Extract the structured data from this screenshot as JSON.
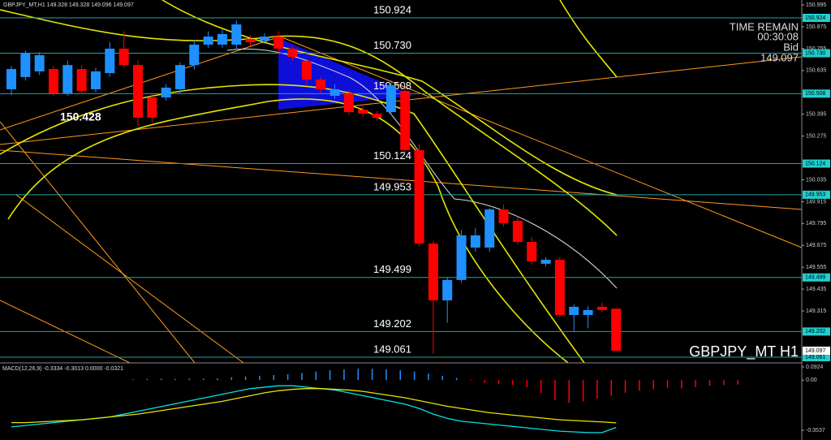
{
  "chart_data": [
    {
      "type": "candlestick",
      "title": "GBPJPY_MT,H1 149.328 149.328 149.096 149.097",
      "symbol_label": "GBPJPY_MT H1",
      "annotation": "150.428",
      "timer": {
        "label": "TIME REMAIN",
        "time": "00:30:08",
        "bid_label": "Bid",
        "bid": 149.097
      },
      "up_color": "#1e90ff",
      "down_color": "#ff0000",
      "level_color": "#1fa5a5",
      "ylim": [
        149.03,
        151.022
      ],
      "yticks": [
        150.995,
        150.875,
        150.755,
        150.635,
        150.395,
        150.275,
        150.035,
        149.915,
        149.795,
        149.675,
        149.555,
        149.435,
        149.315
      ],
      "levels": [
        {
          "value": 150.924,
          "label": "150.924"
        },
        {
          "value": 150.73,
          "label": "150.730"
        },
        {
          "value": 150.508,
          "label": "150.508"
        },
        {
          "value": 150.124,
          "label": "150.124"
        },
        {
          "value": 149.953,
          "label": "149.953"
        },
        {
          "value": 149.499,
          "label": "149.499"
        },
        {
          "value": 149.202,
          "label": "149.202"
        },
        {
          "value": 149.061,
          "label": "149.061"
        }
      ],
      "open": [
        150.532,
        150.599,
        150.63,
        150.643,
        150.51,
        150.643,
        150.532,
        150.621,
        150.755,
        150.665,
        150.487,
        150.487,
        150.532,
        150.665,
        150.777,
        150.777,
        150.777,
        150.808,
        150.799,
        150.821,
        150.755,
        150.688,
        150.585,
        150.496,
        150.51,
        150.42,
        150.398,
        150.407,
        150.523,
        150.198,
        149.685,
        149.373,
        149.485,
        149.663,
        149.663,
        149.872,
        149.81,
        149.694,
        149.574,
        149.596,
        149.293,
        149.293,
        149.338,
        149.328
      ],
      "high": [
        150.66,
        150.745,
        150.735,
        150.66,
        150.69,
        150.665,
        150.65,
        150.79,
        150.85,
        150.69,
        150.51,
        150.56,
        150.68,
        150.8,
        150.85,
        150.86,
        150.91,
        150.83,
        150.84,
        150.85,
        150.77,
        150.7,
        150.6,
        150.56,
        150.53,
        150.44,
        150.41,
        150.58,
        150.56,
        150.23,
        149.7,
        149.5,
        149.76,
        149.77,
        149.88,
        149.9,
        149.83,
        149.72,
        149.61,
        149.61,
        149.35,
        149.34,
        149.36,
        149.328
      ],
      "low": [
        150.5,
        150.58,
        150.61,
        150.495,
        150.495,
        150.505,
        150.515,
        150.6,
        150.65,
        150.33,
        150.35,
        150.47,
        150.51,
        150.64,
        150.76,
        150.76,
        150.75,
        150.77,
        150.78,
        150.73,
        150.69,
        150.56,
        150.51,
        150.48,
        150.39,
        150.38,
        150.36,
        150.39,
        150.18,
        149.67,
        149.08,
        149.25,
        149.47,
        149.64,
        149.64,
        149.78,
        149.68,
        149.57,
        149.56,
        149.28,
        149.2,
        149.22,
        149.31,
        149.096
      ],
      "close": [
        150.643,
        150.732,
        150.719,
        150.51,
        150.665,
        150.523,
        150.63,
        150.755,
        150.665,
        150.376,
        150.376,
        150.541,
        150.665,
        150.777,
        150.821,
        150.835,
        150.888,
        150.79,
        150.821,
        150.755,
        150.71,
        150.585,
        150.532,
        150.532,
        150.407,
        150.398,
        150.376,
        150.554,
        150.198,
        149.685,
        149.373,
        149.485,
        149.73,
        149.73,
        149.872,
        149.797,
        149.694,
        149.587,
        149.596,
        149.293,
        149.338,
        149.32,
        149.32,
        149.097
      ]
    },
    {
      "type": "macd",
      "title": "MACD(12,26,9) -0.3334 -0.3013 0.0000 -0.0321",
      "ylim": [
        -0.422,
        0.121
      ],
      "yticks": [
        0.0924,
        {
          "value": 0,
          "label": "0.00"
        },
        -0.3537
      ],
      "histogram": {
        "up_color": "#1e90ff",
        "down_color": "#ff0000",
        "values": [
          0.005,
          0.008,
          0.01,
          0.008,
          0.01,
          0.01,
          0.012,
          0.02,
          0.025,
          0.03,
          0.035,
          0.04,
          0.05,
          0.06,
          0.07,
          0.075,
          0.08,
          0.08,
          0.075,
          0.07,
          0.06,
          0.045,
          0.03,
          0.015,
          -0.005,
          -0.02,
          -0.03,
          -0.035,
          -0.05,
          -0.09,
          -0.14,
          -0.16,
          -0.15,
          -0.13,
          -0.11,
          -0.09,
          -0.075,
          -0.065,
          -0.055,
          -0.06,
          -0.05,
          -0.04,
          -0.035,
          -0.0321
        ]
      },
      "series": [
        {
          "color": "#00e5e5",
          "values": [
            -0.33,
            -0.32,
            -0.31,
            -0.3,
            -0.29,
            -0.28,
            -0.27,
            -0.26,
            -0.24,
            -0.22,
            -0.2,
            -0.18,
            -0.16,
            -0.14,
            -0.12,
            -0.1,
            -0.08,
            -0.06,
            -0.05,
            -0.04,
            -0.04,
            -0.05,
            -0.06,
            -0.07,
            -0.09,
            -0.11,
            -0.13,
            -0.15,
            -0.17,
            -0.2,
            -0.24,
            -0.27,
            -0.29,
            -0.3,
            -0.31,
            -0.32,
            -0.33,
            -0.34,
            -0.35,
            -0.36,
            -0.365,
            -0.37,
            -0.37,
            -0.3334
          ]
        },
        {
          "color": "#e5e500",
          "values": [
            -0.3,
            -0.3,
            -0.295,
            -0.29,
            -0.285,
            -0.28,
            -0.27,
            -0.26,
            -0.25,
            -0.24,
            -0.225,
            -0.21,
            -0.195,
            -0.18,
            -0.165,
            -0.15,
            -0.13,
            -0.11,
            -0.09,
            -0.075,
            -0.065,
            -0.06,
            -0.06,
            -0.065,
            -0.07,
            -0.08,
            -0.095,
            -0.11,
            -0.125,
            -0.145,
            -0.165,
            -0.185,
            -0.2,
            -0.215,
            -0.23,
            -0.24,
            -0.25,
            -0.26,
            -0.27,
            -0.28,
            -0.285,
            -0.29,
            -0.295,
            -0.3013
          ]
        }
      ]
    }
  ]
}
